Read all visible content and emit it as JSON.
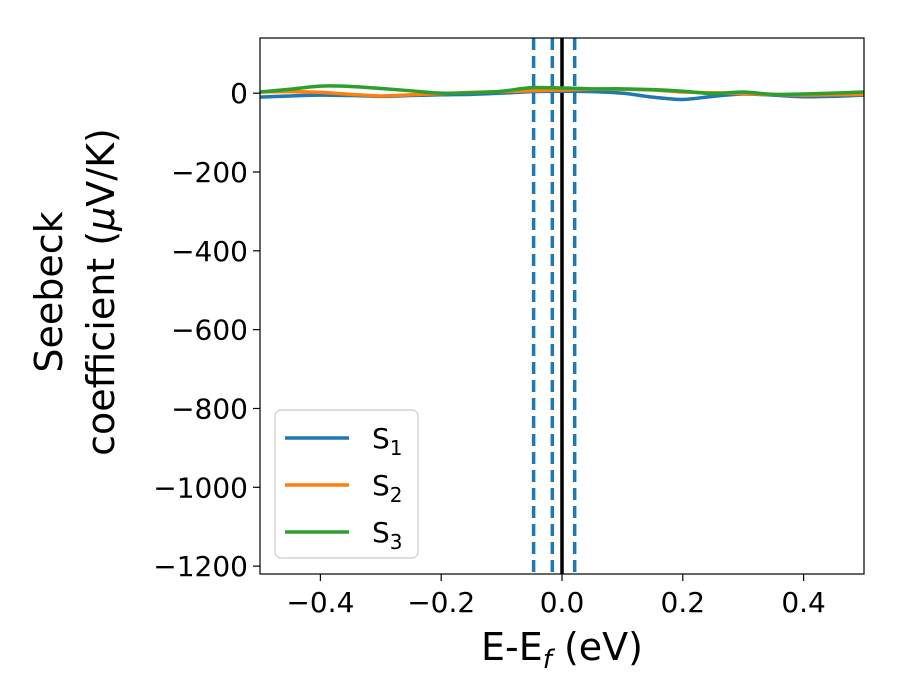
{
  "chart_data": {
    "type": "line",
    "xlabel_main": "E-E",
    "xlabel_sub": "f",
    "xlabel_unit": " (eV)",
    "ylabel_line1": "Seebeck",
    "ylabel_line2_prefix": "coefficient  (",
    "ylabel_line2_mu": "μ",
    "ylabel_line2_suffix": "V/K)",
    "xlim": [
      -0.5,
      0.5
    ],
    "ylim": [
      -1220,
      140
    ],
    "x_ticks": [
      -0.4,
      -0.2,
      0.0,
      0.2,
      0.4
    ],
    "x_tick_labels": [
      "−0.4",
      "−0.2",
      "0.0",
      "0.2",
      "0.4"
    ],
    "y_ticks": [
      0,
      -200,
      -400,
      -600,
      -800,
      -1000,
      -1200
    ],
    "y_tick_labels": [
      "0",
      "−200",
      "−400",
      "−600",
      "−800",
      "−1000",
      "−1200"
    ],
    "grid": false,
    "legend_position": "lower-left",
    "vlines": [
      {
        "x": -0.047,
        "style": "dashed",
        "color": "#1f77b4"
      },
      {
        "x": -0.016,
        "style": "dashed",
        "color": "#1f77b4"
      },
      {
        "x": 0.0,
        "style": "solid",
        "color": "#000000"
      },
      {
        "x": 0.021,
        "style": "dashed",
        "color": "#1f77b4"
      }
    ],
    "series": [
      {
        "name_main": "S",
        "name_sub": "1",
        "color": "#1f77b4",
        "x": [
          -0.5,
          -0.45,
          -0.4,
          -0.35,
          -0.3,
          -0.25,
          -0.2,
          -0.15,
          -0.1,
          -0.05,
          0.0,
          0.05,
          0.1,
          0.15,
          0.2,
          0.25,
          0.3,
          0.35,
          0.4,
          0.45,
          0.5
        ],
        "y": [
          -10,
          -7,
          -5,
          -6,
          -8,
          -6,
          -4,
          -3,
          0,
          4,
          5,
          4,
          0,
          -10,
          -16,
          -8,
          -2,
          -5,
          -9,
          -8,
          -5
        ]
      },
      {
        "name_main": "S",
        "name_sub": "2",
        "color": "#ff7f0e",
        "x": [
          -0.5,
          -0.45,
          -0.4,
          -0.35,
          -0.3,
          -0.25,
          -0.2,
          -0.15,
          -0.1,
          -0.05,
          0.0,
          0.05,
          0.1,
          0.15,
          0.2,
          0.25,
          0.3,
          0.35,
          0.4,
          0.45,
          0.5
        ],
        "y": [
          3,
          4,
          2,
          -3,
          -7,
          -4,
          -1,
          2,
          4,
          6,
          8,
          10,
          10,
          8,
          3,
          1,
          -1,
          -3,
          -5,
          -4,
          -3
        ]
      },
      {
        "name_main": "S",
        "name_sub": "3",
        "color": "#2ca02c",
        "x": [
          -0.5,
          -0.45,
          -0.4,
          -0.35,
          -0.3,
          -0.25,
          -0.2,
          -0.15,
          -0.1,
          -0.05,
          0.0,
          0.05,
          0.1,
          0.15,
          0.2,
          0.25,
          0.3,
          0.35,
          0.4,
          0.45,
          0.5
        ],
        "y": [
          3,
          10,
          18,
          17,
          12,
          6,
          0,
          1,
          5,
          14,
          13,
          11,
          11,
          9,
          5,
          -1,
          3,
          -3,
          -2,
          0,
          3
        ]
      }
    ]
  }
}
